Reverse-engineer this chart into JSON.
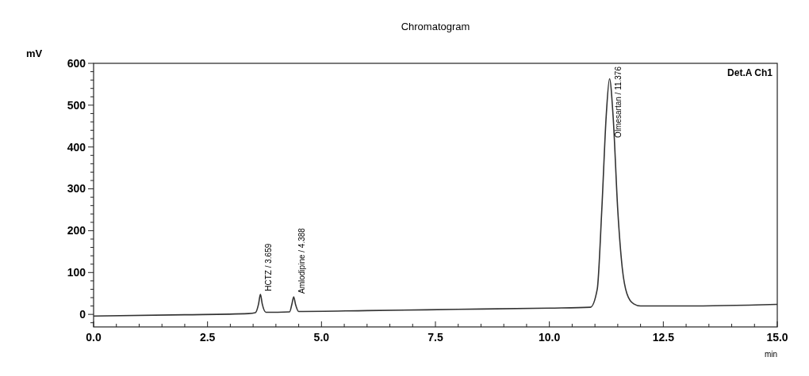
{
  "chart_data": {
    "type": "line",
    "title": "Chromatogram",
    "xlabel": "min",
    "ylabel": "mV",
    "annotations": [
      "Det.A Ch1",
      {
        "text": "HCTZ / 3.659",
        "x": 3.66,
        "y": 48
      },
      {
        "text": "Amlodipine / 4.388",
        "x": 4.39,
        "y": 42
      },
      {
        "text": "Olmesartan / 11.376",
        "x": 11.32,
        "y": 563
      }
    ],
    "x": [
      0,
      2,
      3.4,
      3.55,
      3.62,
      3.66,
      3.7,
      3.78,
      4.3,
      4.35,
      4.39,
      4.43,
      4.5,
      6,
      8,
      10,
      10.9,
      11.05,
      11.15,
      11.25,
      11.32,
      11.4,
      11.5,
      11.6,
      11.7,
      11.85,
      12,
      13,
      15
    ],
    "series": [
      {
        "color": "#333333",
        "values": [
          -4,
          -1,
          2,
          4,
          25,
          48,
          25,
          5,
          6,
          24,
          42,
          24,
          7,
          9,
          12,
          15,
          17,
          60,
          250,
          480,
          563,
          470,
          250,
          110,
          50,
          25,
          20,
          20,
          24
        ]
      }
    ],
    "xlim": [
      0,
      15
    ],
    "ylim": [
      -30,
      600
    ],
    "xticks": [
      {
        "value": 0,
        "label": "0.0"
      },
      {
        "value": 0.5,
        "label": null
      },
      {
        "value": 1,
        "label": null
      },
      {
        "value": 1.5,
        "label": null
      },
      {
        "value": 2,
        "label": null
      },
      {
        "value": 2.5,
        "label": "2.5"
      },
      {
        "value": 3,
        "label": null
      },
      {
        "value": 3.5,
        "label": null
      },
      {
        "value": 4,
        "label": null
      },
      {
        "value": 4.5,
        "label": null
      },
      {
        "value": 5,
        "label": "5.0"
      },
      {
        "value": 5.5,
        "label": null
      },
      {
        "value": 6,
        "label": null
      },
      {
        "value": 6.5,
        "label": null
      },
      {
        "value": 7,
        "label": null
      },
      {
        "value": 7.5,
        "label": "7.5"
      },
      {
        "value": 8,
        "label": null
      },
      {
        "value": 8.5,
        "label": null
      },
      {
        "value": 9,
        "label": null
      },
      {
        "value": 9.5,
        "label": null
      },
      {
        "value": 10,
        "label": "10.0"
      },
      {
        "value": 10.5,
        "label": null
      },
      {
        "value": 11,
        "label": null
      },
      {
        "value": 11.5,
        "label": null
      },
      {
        "value": 12,
        "label": null
      },
      {
        "value": 12.5,
        "label": "12.5"
      },
      {
        "value": 13,
        "label": null
      },
      {
        "value": 13.5,
        "label": null
      },
      {
        "value": 14,
        "label": null
      },
      {
        "value": 14.5,
        "label": null
      },
      {
        "value": 15,
        "label": "15.0"
      }
    ],
    "yticks": [
      {
        "value": -20,
        "label": null
      },
      0,
      {
        "value": 20,
        "label": null
      },
      {
        "value": 40,
        "label": null
      },
      {
        "value": 60,
        "label": null
      },
      {
        "value": 80,
        "label": null
      },
      100,
      {
        "value": 120,
        "label": null
      },
      {
        "value": 140,
        "label": null
      },
      {
        "value": 160,
        "label": null
      },
      {
        "value": 180,
        "label": null
      },
      200,
      {
        "value": 220,
        "label": null
      },
      {
        "value": 240,
        "label": null
      },
      {
        "value": 260,
        "label": null
      },
      {
        "value": 280,
        "label": null
      },
      300,
      {
        "value": 320,
        "label": null
      },
      {
        "value": 340,
        "label": null
      },
      {
        "value": 360,
        "label": null
      },
      {
        "value": 380,
        "label": null
      },
      400,
      {
        "value": 420,
        "label": null
      },
      {
        "value": 440,
        "label": null
      },
      {
        "value": 460,
        "label": null
      },
      {
        "value": 480,
        "label": null
      },
      500,
      {
        "value": 520,
        "label": null
      },
      {
        "value": 540,
        "label": null
      },
      {
        "value": 560,
        "label": null
      },
      {
        "value": 580,
        "label": null
      },
      600
    ],
    "grid": false,
    "marker": "none",
    "line_style": "solid"
  }
}
